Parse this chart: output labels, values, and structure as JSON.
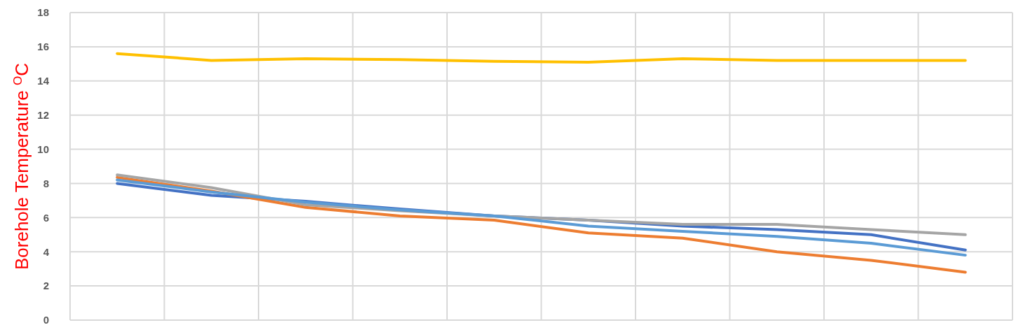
{
  "chart_data": {
    "type": "line",
    "ylabel": "Borehole Temperature $^{O}$C",
    "categories": [
      null,
      null,
      null,
      null,
      null,
      null,
      null,
      null,
      null,
      null
    ],
    "series": [
      {
        "color": "#4472c4",
        "values": [
          8.0,
          7.3,
          6.95,
          6.5,
          6.1,
          5.85,
          5.5,
          5.3,
          5.0,
          4.1
        ]
      },
      {
        "color": "#ed7d31",
        "values": [
          8.35,
          7.55,
          6.6,
          6.1,
          5.85,
          5.1,
          4.8,
          4.0,
          3.5,
          2.8
        ]
      },
      {
        "color": "#a5a5a5",
        "values": [
          8.5,
          7.75,
          6.75,
          6.4,
          6.1,
          5.85,
          5.6,
          5.6,
          5.3,
          5.0
        ]
      },
      {
        "color": "#ffc000",
        "values": [
          15.6,
          15.2,
          15.3,
          15.25,
          15.15,
          15.1,
          15.3,
          15.2,
          15.2,
          15.2
        ]
      },
      {
        "color": "#5b9bd5",
        "values": [
          8.2,
          7.5,
          6.9,
          6.45,
          6.1,
          5.5,
          5.2,
          4.9,
          4.5,
          3.8
        ]
      }
    ],
    "ylim": [
      0,
      18
    ],
    "yticks": [
      0,
      2,
      4,
      6,
      8,
      10,
      12,
      14,
      16,
      18
    ],
    "grid": true,
    "marker": "none",
    "line_style": "solid"
  }
}
